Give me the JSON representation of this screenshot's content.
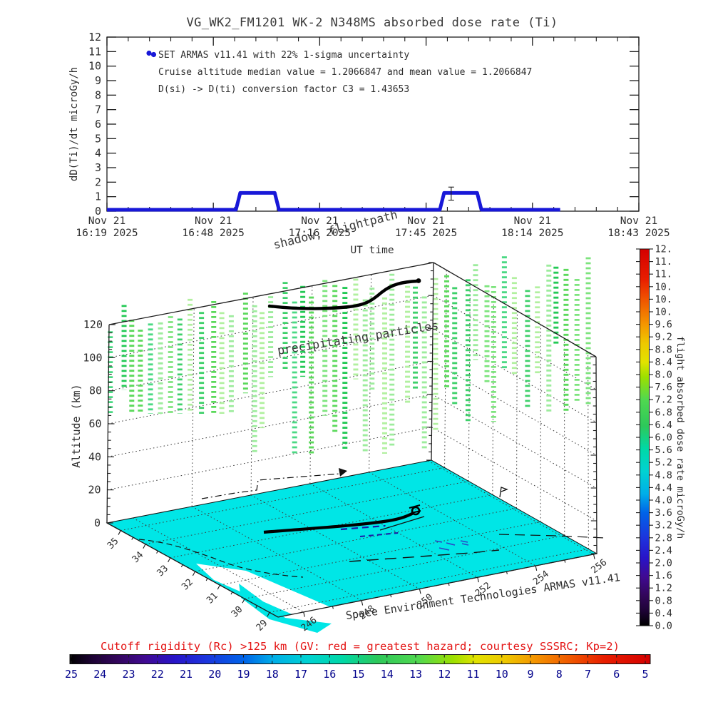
{
  "title": "VG_WK2_FM1201   WK-2 N348MS absorbed dose rate (Ti)",
  "top_chart": {
    "ylabel": "dD(Ti)/dt microGy/h",
    "xlabel": "UT time",
    "yticks": [
      0,
      1,
      2,
      3,
      4,
      5,
      6,
      7,
      8,
      9,
      10,
      11,
      12
    ],
    "xticks": [
      {
        "line1": "Nov 21",
        "line2": "16:19 2025"
      },
      {
        "line1": "Nov 21",
        "line2": "16:48 2025"
      },
      {
        "line1": "Nov 21",
        "line2": "17:16 2025"
      },
      {
        "line1": "Nov 21",
        "line2": "17:45 2025"
      },
      {
        "line1": "Nov 21",
        "line2": "18:14 2025"
      },
      {
        "line1": "Nov 21",
        "line2": "18:43 2025"
      }
    ],
    "annotations": [
      "SET ARMAS v11.41 with 22% 1-sigma uncertainty",
      "Cruise altitude median value = 1.2066847 and mean value = 1.2066847",
      "D(si) -> D(ti) conversion factor C3 = 1.43653"
    ],
    "line_color": "#1818d8"
  },
  "labels_3d": {
    "altitude": "Altitude (km)",
    "shadow_flightpath": "shadow, flightpath",
    "precipitating": "precipitating particles",
    "credit": "Space Environment Technologies ARMAS v11.41"
  },
  "axes_3d": {
    "alt_ticks": [
      0,
      20,
      40,
      60,
      80,
      100,
      120
    ],
    "lat_ticks": [
      35,
      34,
      33,
      32,
      31,
      30,
      29
    ],
    "lon_ticks": [
      246,
      248,
      250,
      252,
      254,
      256
    ]
  },
  "colorbar": {
    "label": "flight absorbed dose rate microGy/h",
    "tick_labels": [
      "12.",
      "11.",
      "11.",
      "10.",
      "10.",
      "10.",
      "9.6",
      "9.2",
      "8.8",
      "8.4",
      "8.0",
      "7.6",
      "7.2",
      "6.8",
      "6.4",
      "6.0",
      "5.6",
      "5.2",
      "4.8",
      "4.4",
      "4.0",
      "3.6",
      "3.2",
      "2.8",
      "2.4",
      "2.0",
      "1.6",
      "1.2",
      "0.8",
      "0.4",
      "0.0"
    ]
  },
  "bottom_legend": {
    "caption": "Cutoff rigidity (Rc) >125 km (GV: red = greatest hazard; courtesy SSSRC; Kp=2)",
    "numbers": [
      25,
      24,
      23,
      22,
      21,
      20,
      19,
      18,
      17,
      16,
      15,
      14,
      13,
      12,
      11,
      10,
      9,
      8,
      7,
      6,
      5
    ],
    "caption_color": "#e41414",
    "number_color": "#00008b"
  },
  "chart_data": [
    {
      "type": "line",
      "title": "VG_WK2_FM1201 WK-2 N348MS absorbed dose rate (Ti)",
      "xlabel": "UT time",
      "ylabel": "dD(Ti)/dt microGy/h",
      "ylim": [
        0,
        12
      ],
      "x_tick_times": [
        "Nov 21 16:19 2025",
        "Nov 21 16:48 2025",
        "Nov 21 17:16 2025",
        "Nov 21 17:45 2025",
        "Nov 21 18:14 2025",
        "Nov 21 18:43 2025"
      ],
      "duration_min": 144,
      "series": [
        {
          "name": "absorbed dose rate (Ti)",
          "color": "#1818d8",
          "segments": [
            {
              "start_min": 0,
              "end_min": 35.5,
              "value": 0.05
            },
            {
              "start_min": 35.5,
              "end_min": 46.0,
              "value": 1.21
            },
            {
              "start_min": 46.0,
              "end_min": 90.7,
              "value": 0.05
            },
            {
              "start_min": 90.7,
              "end_min": 100.8,
              "value": 1.21
            },
            {
              "start_min": 100.8,
              "end_min": 122.7,
              "value": 0.05
            }
          ]
        }
      ],
      "error_bar": {
        "minute": 93.2,
        "value": 1.21,
        "half_range": 0.45
      },
      "uncertainty_pct": 22,
      "cruise_median": 1.2066847,
      "cruise_mean": 1.2066847,
      "conversion_factor_C3": 1.43653
    },
    {
      "type": "scatter3d",
      "zlabel": "Altitude (km)",
      "zlim": [
        0,
        120
      ],
      "lat_range": [
        29,
        35
      ],
      "lon_range": [
        246,
        256
      ],
      "colorbar_range": [
        0,
        12.4
      ],
      "floor": "cutoff rigidity map",
      "floor_color": "#00e6e6",
      "particle_color_palette": [
        "#9dec9d",
        "#7de47d",
        "#5bd95b",
        "#3ed06a",
        "#23c955",
        "#b2f0a0",
        "#4ad983"
      ]
    }
  ]
}
